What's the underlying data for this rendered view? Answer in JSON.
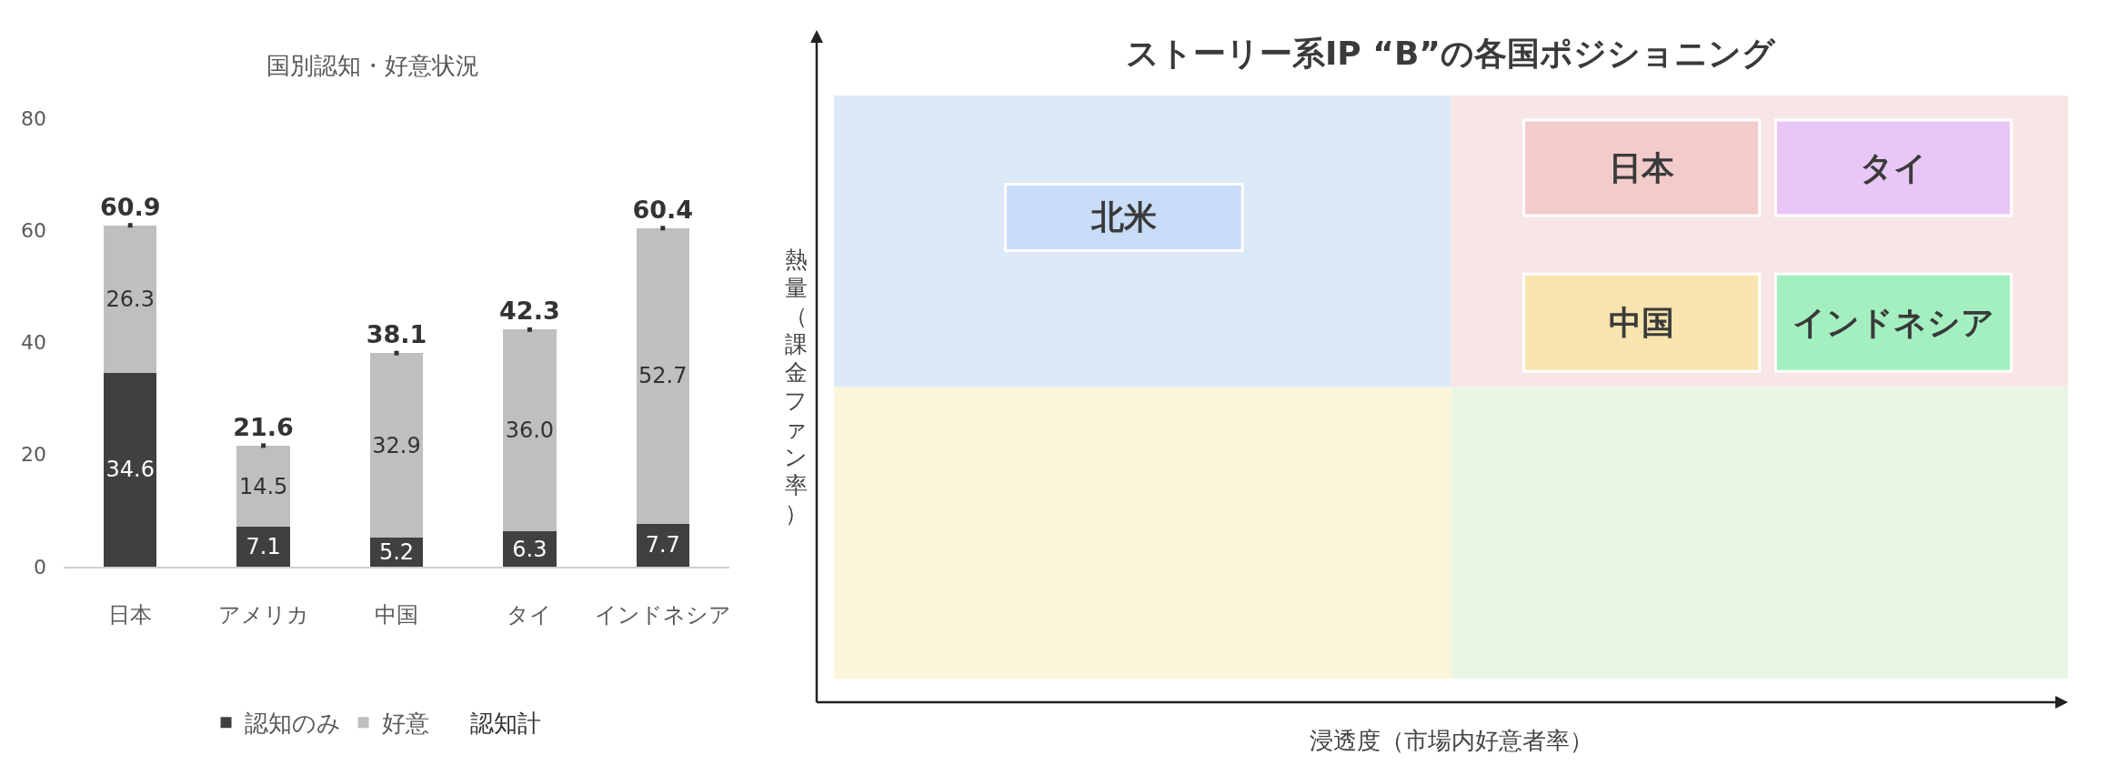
{
  "chart_data": [
    {
      "type": "bar",
      "title": "国別認知・好意状況",
      "stacked": true,
      "legend": "bottom",
      "grid": false,
      "categories": [
        "日本",
        "アメリカ",
        "中国",
        "タイ",
        "インドネシア"
      ],
      "ylim": [
        0,
        80
      ],
      "yticks": [
        0,
        20,
        40,
        60,
        80
      ],
      "series": [
        {
          "name": "認知のみ",
          "color": "#404040",
          "values": [
            34.6,
            7.1,
            5.2,
            6.3,
            7.7
          ],
          "value_labels": [
            "34.6",
            "7.1",
            "5.2",
            "6.3",
            "7.7"
          ]
        },
        {
          "name": "好意",
          "color": "#bfbfbf",
          "values": [
            26.3,
            14.5,
            32.9,
            36.0,
            52.7
          ],
          "value_labels": [
            "26.3",
            "14.5",
            "32.9",
            "36.0",
            "52.7"
          ]
        },
        {
          "name": "認知計",
          "type": "scatter",
          "marker": "square",
          "color": "#333333",
          "values": [
            60.9,
            21.6,
            38.1,
            42.3,
            60.4
          ],
          "value_labels": [
            "60.9",
            "21.6",
            "38.1",
            "42.3",
            "60.4"
          ]
        }
      ]
    },
    {
      "type": "other",
      "title": "ストーリー系IP “B”の各国ポジショニング",
      "xlabel": "浸透度（市場内好意者率）",
      "ylabel": "熱量（課金ファン率）",
      "annotations": [
        "北米",
        "日本",
        "タイ",
        "中国",
        "インドネシア"
      ]
    }
  ]
}
